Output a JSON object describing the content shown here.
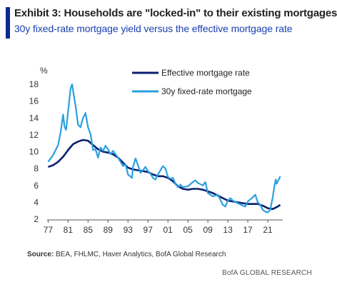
{
  "header": {
    "title": "Exhibit 3: Households are \"locked-in\" to their existing mortgages",
    "subtitle": "30y fixed-rate mortgage yield versus the effective mortgage rate"
  },
  "footer": {
    "source_label": "Source:",
    "source_text": " BEA, FHLMC, Haver Analytics, BofA Global Research",
    "brand": "BofA GLOBAL RESEARCH"
  },
  "colors": {
    "accent": "#0a2a8f",
    "subtitle": "#1a3fb0",
    "effective": "#0a1f6e",
    "fixed30": "#2aa0e0"
  },
  "chart_data": {
    "type": "line",
    "ylabel": "%",
    "xlim": [
      1976.8,
      2024.0
    ],
    "ylim": [
      2,
      18
    ],
    "xticks": [
      1977,
      1981,
      1985,
      1989,
      1993,
      1997,
      2001,
      2005,
      2009,
      2013,
      2017,
      2021
    ],
    "xtick_labels": [
      "77",
      "81",
      "85",
      "89",
      "93",
      "97",
      "01",
      "05",
      "09",
      "13",
      "17",
      "21"
    ],
    "yticks": [
      2,
      4,
      6,
      8,
      10,
      12,
      14,
      16,
      18
    ],
    "grid": false,
    "legend_position": "top-right",
    "series": [
      {
        "name": "Effective mortgage rate",
        "color_key": "effective",
        "x": [
          1977,
          1978,
          1979,
          1980,
          1981,
          1982,
          1983,
          1984,
          1985,
          1986,
          1987,
          1988,
          1989,
          1990,
          1991,
          1992,
          1993,
          1994,
          1995,
          1996,
          1997,
          1998,
          1999,
          2000,
          2001,
          2002,
          2003,
          2004,
          2005,
          2006,
          2007,
          2008,
          2009,
          2010,
          2011,
          2012,
          2013,
          2014,
          2015,
          2016,
          2017,
          2018,
          2019,
          2020,
          2021,
          2022,
          2023,
          2023.5
        ],
        "y": [
          8.2,
          8.4,
          8.8,
          9.4,
          10.2,
          10.9,
          11.2,
          11.4,
          11.3,
          10.8,
          10.3,
          10.0,
          9.9,
          9.7,
          9.3,
          8.7,
          8.1,
          7.9,
          7.8,
          7.7,
          7.6,
          7.3,
          7.1,
          7.1,
          6.9,
          6.5,
          5.9,
          5.6,
          5.5,
          5.6,
          5.6,
          5.5,
          5.3,
          5.1,
          4.8,
          4.5,
          4.2,
          4.1,
          4.0,
          3.9,
          3.8,
          3.8,
          3.8,
          3.6,
          3.3,
          3.2,
          3.5,
          3.7
        ]
      },
      {
        "name": "30y fixed-rate mortgage",
        "color_key": "fixed30",
        "x": [
          1977,
          1978,
          1979,
          1979.5,
          1980,
          1980.3,
          1980.6,
          1981,
          1981.5,
          1981.8,
          1982,
          1982.5,
          1983,
          1983.5,
          1984,
          1984.5,
          1985,
          1985.5,
          1986,
          1986.5,
          1987,
          1987.5,
          1988,
          1988.5,
          1989,
          1989.5,
          1990,
          1991,
          1992,
          1992.5,
          1993,
          1993.8,
          1994,
          1994.5,
          1995,
          1995.5,
          1996,
          1996.5,
          1997,
          1997.5,
          1998,
          1998.5,
          1999,
          2000,
          2000.5,
          2001,
          2001.5,
          2002,
          2002.5,
          2003,
          2003.5,
          2004,
          2005,
          2006,
          2006.5,
          2007,
          2008,
          2008.5,
          2009,
          2010,
          2011,
          2012,
          2012.5,
          2013,
          2013.5,
          2014,
          2015,
          2016,
          2016.5,
          2017,
          2018,
          2018.5,
          2019,
          2019.5,
          2020,
          2020.5,
          2021,
          2021.5,
          2022,
          2022.3,
          2022.6,
          2022.8,
          2023,
          2023.3,
          2023.5
        ],
        "y": [
          8.8,
          9.6,
          10.8,
          12.3,
          14.4,
          12.9,
          12.6,
          14.8,
          17.5,
          18.0,
          17.2,
          15.4,
          13.2,
          12.9,
          14.0,
          14.6,
          12.9,
          12.1,
          10.2,
          10.3,
          9.3,
          10.5,
          10.1,
          10.7,
          10.3,
          9.7,
          10.1,
          9.3,
          8.3,
          8.5,
          7.3,
          6.9,
          8.2,
          9.2,
          8.4,
          7.5,
          7.8,
          8.2,
          7.7,
          7.4,
          6.9,
          6.7,
          7.3,
          8.3,
          8.0,
          7.0,
          6.8,
          6.9,
          6.2,
          5.8,
          6.1,
          5.8,
          5.9,
          6.4,
          6.6,
          6.3,
          6.0,
          6.4,
          5.1,
          4.7,
          4.9,
          3.7,
          3.5,
          4.2,
          4.5,
          4.2,
          3.9,
          3.6,
          3.5,
          4.1,
          4.6,
          4.9,
          4.0,
          3.7,
          3.1,
          2.9,
          2.8,
          3.1,
          4.6,
          5.8,
          6.7,
          6.2,
          6.5,
          6.8,
          7.1
        ]
      }
    ]
  }
}
